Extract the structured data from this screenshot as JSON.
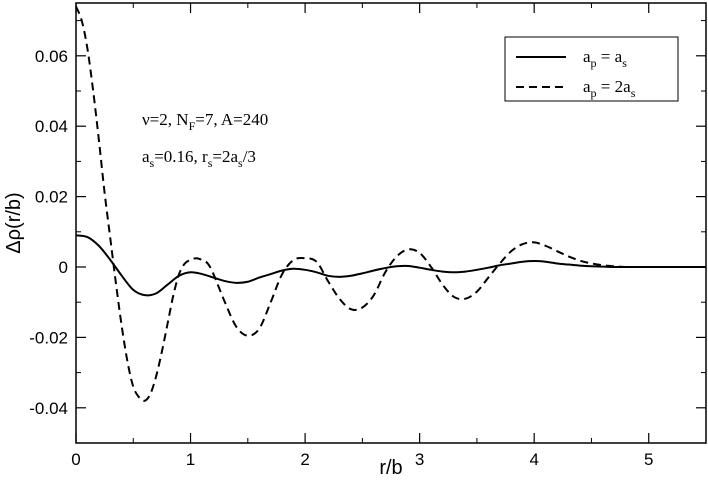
{
  "chart_data": {
    "type": "line",
    "title": "",
    "xlabel": "r/b",
    "ylabel": "Δρ(r/b)",
    "xlim": [
      0,
      5.5
    ],
    "ylim": [
      -0.05,
      0.075
    ],
    "x_ticks": [
      0,
      1,
      2,
      3,
      4,
      5
    ],
    "x_tick_labels": [
      "0",
      "1",
      "2",
      "3",
      "4",
      "5"
    ],
    "y_ticks": [
      -0.04,
      -0.02,
      0,
      0.02,
      0.04,
      0.06
    ],
    "y_tick_labels": [
      "-0.04",
      "-0.02",
      "0",
      "0.02",
      "0.04",
      "0.06"
    ],
    "grid": false,
    "legend_position": "top-right",
    "legend": [
      {
        "base": "a",
        "sub": "p",
        "eq": " = a",
        "sub2": "s",
        "style": "solid"
      },
      {
        "base": "a",
        "sub": "p",
        "eq": " = 2a",
        "sub2": "s",
        "style": "dashed"
      }
    ],
    "annotations": [
      {
        "parts": [
          [
            "ν=2, N",
            ""
          ],
          [
            "F",
            "sub"
          ],
          [
            "=7, A=240",
            ""
          ]
        ]
      },
      {
        "parts": [
          [
            "a",
            ""
          ],
          [
            "s",
            "sub"
          ],
          [
            "=0.16, r",
            ""
          ],
          [
            "s",
            "sub"
          ],
          [
            "=2a",
            ""
          ],
          [
            "s",
            "sub"
          ],
          [
            "/3",
            ""
          ]
        ]
      }
    ],
    "series": [
      {
        "style": "solid",
        "x": [
          0,
          0.1,
          0.2,
          0.3,
          0.4,
          0.5,
          0.6,
          0.7,
          0.8,
          0.9,
          1.0,
          1.1,
          1.2,
          1.3,
          1.4,
          1.5,
          1.6,
          1.7,
          1.8,
          1.9,
          2.0,
          2.1,
          2.2,
          2.3,
          2.4,
          2.5,
          2.6,
          2.7,
          2.8,
          2.9,
          3.0,
          3.1,
          3.2,
          3.3,
          3.4,
          3.5,
          3.6,
          3.7,
          3.8,
          3.9,
          4.0,
          4.1,
          4.2,
          4.3,
          4.4,
          4.5,
          4.6,
          4.7,
          4.8,
          4.9,
          5.0,
          5.2,
          5.5
        ],
        "y": [
          0.009,
          0.0085,
          0.006,
          0.002,
          -0.0025,
          -0.0065,
          -0.008,
          -0.0075,
          -0.005,
          -0.0025,
          -0.0015,
          -0.002,
          -0.003,
          -0.004,
          -0.0045,
          -0.0042,
          -0.003,
          -0.002,
          -0.001,
          -0.0005,
          -0.0008,
          -0.0015,
          -0.0025,
          -0.0028,
          -0.0025,
          -0.0018,
          -0.001,
          -0.0003,
          0.0002,
          0.0003,
          -0.0002,
          -0.0008,
          -0.0013,
          -0.0015,
          -0.0013,
          -0.0008,
          -0.0002,
          0.0005,
          0.001,
          0.0015,
          0.0017,
          0.0015,
          0.001,
          0.0007,
          0.0004,
          0.0002,
          0.0001,
          0.0,
          0.0,
          0.0,
          0.0,
          0.0,
          0.0
        ]
      },
      {
        "style": "dashed",
        "x": [
          0,
          0.05,
          0.1,
          0.15,
          0.2,
          0.25,
          0.3,
          0.35,
          0.4,
          0.45,
          0.5,
          0.55,
          0.6,
          0.65,
          0.7,
          0.75,
          0.8,
          0.85,
          0.9,
          0.95,
          1.0,
          1.05,
          1.1,
          1.15,
          1.2,
          1.3,
          1.4,
          1.5,
          1.6,
          1.7,
          1.8,
          1.9,
          2.0,
          2.1,
          2.2,
          2.3,
          2.4,
          2.5,
          2.6,
          2.7,
          2.8,
          2.9,
          3.0,
          3.1,
          3.2,
          3.3,
          3.4,
          3.5,
          3.6,
          3.7,
          3.8,
          3.9,
          4.0,
          4.1,
          4.2,
          4.3,
          4.4,
          4.5,
          4.6,
          4.7,
          4.8,
          4.9,
          5.0,
          5.1,
          5.2,
          5.3,
          5.4,
          5.5
        ],
        "y": [
          0.074,
          0.07,
          0.062,
          0.05,
          0.036,
          0.021,
          0.008,
          -0.005,
          -0.017,
          -0.027,
          -0.034,
          -0.037,
          -0.038,
          -0.036,
          -0.031,
          -0.024,
          -0.016,
          -0.008,
          -0.002,
          0.001,
          0.002,
          0.0025,
          0.002,
          0.001,
          -0.002,
          -0.01,
          -0.017,
          -0.0195,
          -0.0175,
          -0.01,
          -0.002,
          0.002,
          0.0025,
          0.0015,
          -0.004,
          -0.009,
          -0.012,
          -0.0115,
          -0.008,
          -0.0015,
          0.003,
          0.005,
          0.004,
          0.0,
          -0.005,
          -0.0085,
          -0.009,
          -0.007,
          -0.003,
          0.001,
          0.0045,
          0.0065,
          0.007,
          0.006,
          0.0045,
          0.003,
          0.0018,
          0.001,
          0.0005,
          0.0002,
          0.0,
          0.0,
          0.0,
          0.0,
          0.0,
          0.0,
          0.0,
          0.0
        ]
      }
    ]
  }
}
